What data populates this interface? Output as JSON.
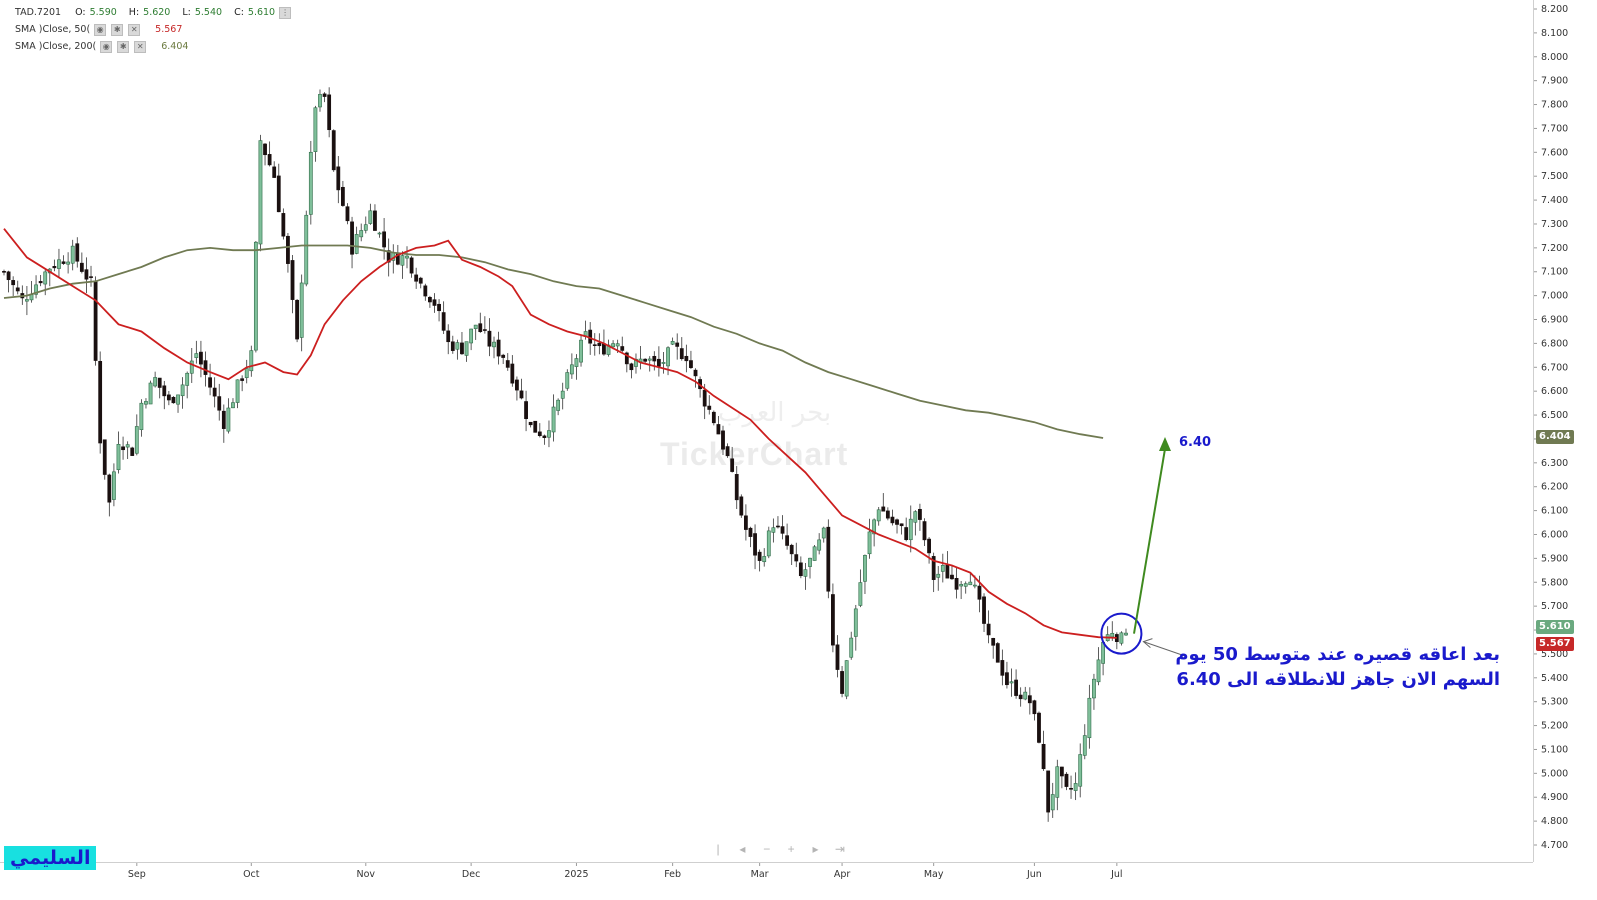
{
  "legend": {
    "symbol": "TAD.7201",
    "o_label": "O:",
    "o": "5.590",
    "h_label": "H:",
    "h": "5.620",
    "l_label": "L:",
    "l": "5.540",
    "c_label": "C:",
    "c": "5.610",
    "sma50_label": "SMA )Close, 50(",
    "sma50_value": "5.567",
    "sma200_label": "SMA )Close, 200(",
    "sma200_value": "6.404"
  },
  "watermark": "TickerChart",
  "watermark_ar": "بحر العرب",
  "annotation": {
    "line1": "بعد اعاقه قصيره عند متوسط 50 يوم",
    "line2": "السهم الان جاهز للانطلاقه الى 6.40",
    "target": "6.40"
  },
  "author": "السليمي",
  "price_tags": {
    "last": "5.610",
    "sma50": "5.567",
    "sma200": "6.404"
  },
  "colors": {
    "up": "#7fbf9a",
    "up_edge": "#2e6b48",
    "down": "#1a1010",
    "sma50": "#cc1f1f",
    "sma200": "#707a52",
    "annotation": "#1a1acc",
    "arrow": "#3f8a1f"
  },
  "navbar_icons": [
    "first-icon",
    "prev-icon",
    "zoom-out-icon",
    "zoom-in-icon",
    "next-icon",
    "last-icon"
  ],
  "chart_data": {
    "type": "candlestick",
    "y_ticks": [
      "8.200",
      "8.100",
      "8.000",
      "7.900",
      "7.800",
      "7.700",
      "7.600",
      "7.500",
      "7.400",
      "7.300",
      "7.200",
      "7.100",
      "7.000",
      "6.900",
      "6.800",
      "6.700",
      "6.600",
      "6.500",
      "6.400",
      "6.300",
      "6.200",
      "6.100",
      "6.000",
      "5.900",
      "5.800",
      "5.700",
      "5.600",
      "5.500",
      "5.400",
      "5.300",
      "5.200",
      "5.100",
      "5.000",
      "4.900",
      "4.800",
      "4.700"
    ],
    "ylim": [
      4.66,
      8.24
    ],
    "x_ticks": [
      "Sep",
      "Oct",
      "Nov",
      "Dec",
      "2025",
      "Feb",
      "Mar",
      "Apr",
      "May",
      "Jun",
      "Jul"
    ],
    "x_tick_index": [
      29,
      54,
      79,
      102,
      125,
      146,
      165,
      183,
      203,
      225,
      243
    ],
    "n": 246,
    "anchors": [
      [
        0,
        7.1
      ],
      [
        4,
        6.98
      ],
      [
        10,
        7.12
      ],
      [
        15,
        7.18
      ],
      [
        19,
        7.05
      ],
      [
        21,
        6.4
      ],
      [
        23,
        6.13
      ],
      [
        25,
        6.4
      ],
      [
        28,
        6.35
      ],
      [
        30,
        6.55
      ],
      [
        33,
        6.65
      ],
      [
        36,
        6.55
      ],
      [
        39,
        6.63
      ],
      [
        42,
        6.76
      ],
      [
        45,
        6.62
      ],
      [
        48,
        6.47
      ],
      [
        51,
        6.62
      ],
      [
        54,
        6.75
      ],
      [
        56,
        7.65
      ],
      [
        59,
        7.5
      ],
      [
        62,
        7.12
      ],
      [
        64,
        6.8
      ],
      [
        66,
        7.35
      ],
      [
        68,
        7.8
      ],
      [
        70,
        7.83
      ],
      [
        72,
        7.52
      ],
      [
        74,
        7.38
      ],
      [
        76,
        7.2
      ],
      [
        80,
        7.35
      ],
      [
        84,
        7.16
      ],
      [
        88,
        7.16
      ],
      [
        91,
        7.05
      ],
      [
        94,
        6.97
      ],
      [
        97,
        6.8
      ],
      [
        100,
        6.78
      ],
      [
        103,
        6.88
      ],
      [
        106,
        6.8
      ],
      [
        109,
        6.75
      ],
      [
        112,
        6.62
      ],
      [
        115,
        6.45
      ],
      [
        118,
        6.42
      ],
      [
        121,
        6.55
      ],
      [
        124,
        6.7
      ],
      [
        127,
        6.83
      ],
      [
        130,
        6.77
      ],
      [
        134,
        6.82
      ],
      [
        137,
        6.7
      ],
      [
        140,
        6.74
      ],
      [
        143,
        6.7
      ],
      [
        146,
        6.78
      ],
      [
        149,
        6.75
      ],
      [
        152,
        6.6
      ],
      [
        155,
        6.48
      ],
      [
        158,
        6.32
      ],
      [
        160,
        6.15
      ],
      [
        162,
        6.02
      ],
      [
        165,
        5.88
      ],
      [
        168,
        6.05
      ],
      [
        171,
        5.95
      ],
      [
        174,
        5.82
      ],
      [
        177,
        5.92
      ],
      [
        179,
        6.0
      ],
      [
        181,
        5.55
      ],
      [
        183,
        5.35
      ],
      [
        185,
        5.58
      ],
      [
        187,
        5.8
      ],
      [
        189,
        6.0
      ],
      [
        191,
        6.12
      ],
      [
        194,
        6.05
      ],
      [
        197,
        6.0
      ],
      [
        199,
        6.1
      ],
      [
        201,
        5.98
      ],
      [
        203,
        5.82
      ],
      [
        205,
        5.85
      ],
      [
        208,
        5.8
      ],
      [
        211,
        5.83
      ],
      [
        213,
        5.7
      ],
      [
        215,
        5.55
      ],
      [
        217,
        5.48
      ],
      [
        219,
        5.38
      ],
      [
        221,
        5.35
      ],
      [
        224,
        5.3
      ],
      [
        226,
        5.15
      ],
      [
        228,
        4.85
      ],
      [
        230,
        5.0
      ],
      [
        232,
        4.92
      ],
      [
        234,
        4.95
      ],
      [
        236,
        5.18
      ],
      [
        238,
        5.4
      ],
      [
        240,
        5.55
      ],
      [
        242,
        5.6
      ],
      [
        244,
        5.56
      ],
      [
        245,
        5.61
      ]
    ],
    "sma50": [
      [
        0,
        7.28
      ],
      [
        5,
        7.16
      ],
      [
        10,
        7.1
      ],
      [
        15,
        7.04
      ],
      [
        20,
        6.98
      ],
      [
        25,
        6.88
      ],
      [
        30,
        6.85
      ],
      [
        35,
        6.78
      ],
      [
        40,
        6.72
      ],
      [
        45,
        6.68
      ],
      [
        49,
        6.65
      ],
      [
        53,
        6.7
      ],
      [
        57,
        6.72
      ],
      [
        61,
        6.68
      ],
      [
        64,
        6.67
      ],
      [
        67,
        6.75
      ],
      [
        70,
        6.88
      ],
      [
        74,
        6.98
      ],
      [
        78,
        7.06
      ],
      [
        82,
        7.12
      ],
      [
        86,
        7.17
      ],
      [
        90,
        7.2
      ],
      [
        94,
        7.21
      ],
      [
        97,
        7.23
      ],
      [
        100,
        7.15
      ],
      [
        104,
        7.12
      ],
      [
        108,
        7.08
      ],
      [
        111,
        7.04
      ],
      [
        115,
        6.92
      ],
      [
        119,
        6.88
      ],
      [
        123,
        6.85
      ],
      [
        127,
        6.83
      ],
      [
        131,
        6.8
      ],
      [
        135,
        6.76
      ],
      [
        139,
        6.72
      ],
      [
        143,
        6.7
      ],
      [
        147,
        6.68
      ],
      [
        151,
        6.64
      ],
      [
        155,
        6.58
      ],
      [
        159,
        6.53
      ],
      [
        163,
        6.48
      ],
      [
        167,
        6.4
      ],
      [
        171,
        6.33
      ],
      [
        175,
        6.26
      ],
      [
        179,
        6.17
      ],
      [
        183,
        6.08
      ],
      [
        187,
        6.04
      ],
      [
        191,
        6.0
      ],
      [
        195,
        5.97
      ],
      [
        199,
        5.94
      ],
      [
        203,
        5.89
      ],
      [
        207,
        5.87
      ],
      [
        211,
        5.84
      ],
      [
        215,
        5.76
      ],
      [
        219,
        5.71
      ],
      [
        223,
        5.67
      ],
      [
        227,
        5.62
      ],
      [
        231,
        5.59
      ],
      [
        235,
        5.58
      ],
      [
        239,
        5.57
      ],
      [
        243,
        5.567
      ]
    ],
    "sma200": [
      [
        0,
        6.99
      ],
      [
        5,
        7.0
      ],
      [
        10,
        7.03
      ],
      [
        15,
        7.05
      ],
      [
        20,
        7.06
      ],
      [
        25,
        7.09
      ],
      [
        30,
        7.12
      ],
      [
        35,
        7.16
      ],
      [
        40,
        7.19
      ],
      [
        45,
        7.2
      ],
      [
        50,
        7.19
      ],
      [
        55,
        7.19
      ],
      [
        60,
        7.2
      ],
      [
        65,
        7.21
      ],
      [
        70,
        7.21
      ],
      [
        75,
        7.21
      ],
      [
        80,
        7.2
      ],
      [
        85,
        7.18
      ],
      [
        90,
        7.17
      ],
      [
        95,
        7.17
      ],
      [
        100,
        7.16
      ],
      [
        105,
        7.14
      ],
      [
        110,
        7.11
      ],
      [
        115,
        7.09
      ],
      [
        120,
        7.06
      ],
      [
        125,
        7.04
      ],
      [
        130,
        7.03
      ],
      [
        135,
        7.0
      ],
      [
        140,
        6.97
      ],
      [
        145,
        6.94
      ],
      [
        150,
        6.91
      ],
      [
        155,
        6.87
      ],
      [
        160,
        6.84
      ],
      [
        165,
        6.8
      ],
      [
        170,
        6.77
      ],
      [
        175,
        6.72
      ],
      [
        180,
        6.68
      ],
      [
        185,
        6.65
      ],
      [
        190,
        6.62
      ],
      [
        195,
        6.59
      ],
      [
        200,
        6.56
      ],
      [
        205,
        6.54
      ],
      [
        210,
        6.52
      ],
      [
        215,
        6.51
      ],
      [
        220,
        6.49
      ],
      [
        225,
        6.47
      ],
      [
        230,
        6.44
      ],
      [
        235,
        6.42
      ],
      [
        240,
        6.404
      ]
    ],
    "target_price": 6.4
  }
}
